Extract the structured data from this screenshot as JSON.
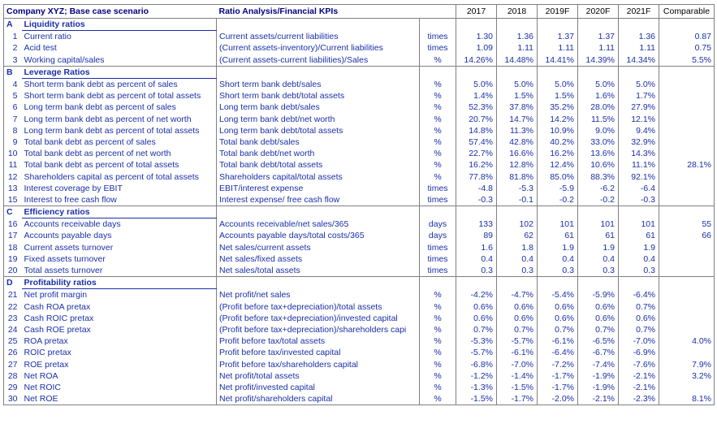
{
  "header": {
    "title": "Company XYZ; Base case scenario",
    "subtitle": "Ratio Analysis/Financial KPIs",
    "years": [
      "2017",
      "2018",
      "2019F",
      "2020F",
      "2021F"
    ],
    "comparable": "Comparable"
  },
  "sections": [
    {
      "letter": "A",
      "title": "Liquidity ratios",
      "rows": [
        {
          "n": "1",
          "name": "Current ratio",
          "formula": "Current assets/current liabilities",
          "unit": "times",
          "values": [
            "1.30",
            "1.36",
            "1.37",
            "1.37",
            "1.36"
          ],
          "comp": "0.87"
        },
        {
          "n": "2",
          "name": "Acid test",
          "formula": "(Current assets-inventory)/Current liabilities",
          "unit": "times",
          "values": [
            "1.09",
            "1.11",
            "1.11",
            "1.11",
            "1.11"
          ],
          "comp": "0.75"
        },
        {
          "n": "3",
          "name": "Working capital/sales",
          "formula": "(Current assets-current liabilities)/Sales",
          "unit": "%",
          "values": [
            "14.26%",
            "14.48%",
            "14.41%",
            "14.39%",
            "14.34%"
          ],
          "comp": "5.5%"
        }
      ]
    },
    {
      "letter": "B",
      "title": "Leverage Ratios",
      "rows": [
        {
          "n": "4",
          "name": "Short term bank debt as percent of sales",
          "formula": "Short term bank debt/sales",
          "unit": "%",
          "values": [
            "5.0%",
            "5.0%",
            "5.0%",
            "5.0%",
            "5.0%"
          ],
          "comp": ""
        },
        {
          "n": "5",
          "name": "Short term bank debt as percent of total assets",
          "formula": "Short term bank debt/total assets",
          "unit": "%",
          "values": [
            "1.4%",
            "1.5%",
            "1.5%",
            "1.6%",
            "1.7%"
          ],
          "comp": ""
        },
        {
          "n": "6",
          "name": "Long term bank debt as percent of sales",
          "formula": "Long term bank debt/sales",
          "unit": "%",
          "values": [
            "52.3%",
            "37.8%",
            "35.2%",
            "28.0%",
            "27.9%"
          ],
          "comp": ""
        },
        {
          "n": "7",
          "name": "Long term bank debt as percent of net worth",
          "formula": "Long term bank debt/net worth",
          "unit": "%",
          "values": [
            "20.7%",
            "14.7%",
            "14.2%",
            "11.5%",
            "12.1%"
          ],
          "comp": ""
        },
        {
          "n": "8",
          "name": "Long term bank debt as percent of total assets",
          "formula": "Long term bank debt/total assets",
          "unit": "%",
          "values": [
            "14.8%",
            "11.3%",
            "10.9%",
            "9.0%",
            "9.4%"
          ],
          "comp": ""
        },
        {
          "n": "9",
          "name": "Total bank debt as percent of sales",
          "formula": "Total bank debt/sales",
          "unit": "%",
          "values": [
            "57.4%",
            "42.8%",
            "40.2%",
            "33.0%",
            "32.9%"
          ],
          "comp": ""
        },
        {
          "n": "10",
          "name": "Total bank debt as percent of net worth",
          "formula": "Total bank debt/net worth",
          "unit": "%",
          "values": [
            "22.7%",
            "16.6%",
            "16.2%",
            "13.6%",
            "14.3%"
          ],
          "comp": ""
        },
        {
          "n": "11",
          "name": "Total bank debt as percent of total assets",
          "formula": "Total bank debt/total assets",
          "unit": "%",
          "values": [
            "16.2%",
            "12.8%",
            "12.4%",
            "10.6%",
            "11.1%"
          ],
          "comp": "28.1%"
        },
        {
          "n": "12",
          "name": "Shareholders capital as percent of total assets",
          "formula": "Shareholders capital/total assets",
          "unit": "%",
          "values": [
            "77.8%",
            "81.8%",
            "85.0%",
            "88.3%",
            "92.1%"
          ],
          "comp": ""
        },
        {
          "n": "13",
          "name": "Interest coverage by EBIT",
          "formula": "EBIT/interest expense",
          "unit": "times",
          "values": [
            "-4.8",
            "-5.3",
            "-5.9",
            "-6.2",
            "-6.4"
          ],
          "comp": ""
        },
        {
          "n": "15",
          "name": "Interest to free cash flow",
          "formula": "Interest expense/ free cash flow",
          "unit": "times",
          "values": [
            "-0.3",
            "-0.1",
            "-0.2",
            "-0.2",
            "-0.3"
          ],
          "comp": ""
        }
      ]
    },
    {
      "letter": "C",
      "title": "Efficiency ratios",
      "rows": [
        {
          "n": "16",
          "name": "Accounts receivable days",
          "formula": "Accounts receivable/net sales/365",
          "unit": "days",
          "values": [
            "133",
            "102",
            "101",
            "101",
            "101"
          ],
          "comp": "55"
        },
        {
          "n": "17",
          "name": "Accounts payable days",
          "formula": "Accounts payable days/total costs/365",
          "unit": "days",
          "values": [
            "89",
            "62",
            "61",
            "61",
            "61"
          ],
          "comp": "66"
        },
        {
          "n": "18",
          "name": "Current assets turnover",
          "formula": "Net sales/current assets",
          "unit": "times",
          "values": [
            "1.6",
            "1.8",
            "1.9",
            "1.9",
            "1.9"
          ],
          "comp": ""
        },
        {
          "n": "19",
          "name": "Fixed assets turnover",
          "formula": "Net sales/fixed assets",
          "unit": "times",
          "values": [
            "0.4",
            "0.4",
            "0.4",
            "0.4",
            "0.4"
          ],
          "comp": ""
        },
        {
          "n": "20",
          "name": "Total assets turnover",
          "formula": "Net sales/total assets",
          "unit": "times",
          "values": [
            "0.3",
            "0.3",
            "0.3",
            "0.3",
            "0.3"
          ],
          "comp": ""
        }
      ]
    },
    {
      "letter": "D",
      "title": "Profitability ratios",
      "rows": [
        {
          "n": "21",
          "name": "Net profit margin",
          "formula": "Net profit/net sales",
          "unit": "%",
          "values": [
            "-4.2%",
            "-4.7%",
            "-5.4%",
            "-5.9%",
            "-6.4%"
          ],
          "comp": ""
        },
        {
          "n": "22",
          "name": "Cash ROA pretax",
          "formula": "(Profit before tax+depreciation)/total assets",
          "unit": "%",
          "values": [
            "0.6%",
            "0.6%",
            "0.6%",
            "0.6%",
            "0.7%"
          ],
          "comp": ""
        },
        {
          "n": "23",
          "name": "Cash ROIC pretax",
          "formula": "(Profit before tax+depreciation)/invested capital",
          "unit": "%",
          "values": [
            "0.6%",
            "0.6%",
            "0.6%",
            "0.6%",
            "0.6%"
          ],
          "comp": ""
        },
        {
          "n": "24",
          "name": "Cash ROE pretax",
          "formula": "(Profit before tax+depreciation)/shareholders capi",
          "unit": "%",
          "values": [
            "0.7%",
            "0.7%",
            "0.7%",
            "0.7%",
            "0.7%"
          ],
          "comp": ""
        },
        {
          "n": "25",
          "name": "ROA pretax",
          "formula": "Profit before tax/total assets",
          "unit": "%",
          "values": [
            "-5.3%",
            "-5.7%",
            "-6.1%",
            "-6.5%",
            "-7.0%"
          ],
          "comp": "4.0%"
        },
        {
          "n": "26",
          "name": "ROIC pretax",
          "formula": "Profit before tax/invested capital",
          "unit": "%",
          "values": [
            "-5.7%",
            "-6.1%",
            "-6.4%",
            "-6.7%",
            "-6.9%"
          ],
          "comp": ""
        },
        {
          "n": "27",
          "name": "ROE pretax",
          "formula": "Profit before tax/shareholders capital",
          "unit": "%",
          "values": [
            "-6.8%",
            "-7.0%",
            "-7.2%",
            "-7.4%",
            "-7.6%"
          ],
          "comp": "7.9%"
        },
        {
          "n": "28",
          "name": "Net ROA",
          "formula": "Net profit/total assets",
          "unit": "%",
          "values": [
            "-1.2%",
            "-1.4%",
            "-1.7%",
            "-1.9%",
            "-2.1%"
          ],
          "comp": "3.2%"
        },
        {
          "n": "29",
          "name": "Net ROIC",
          "formula": "Net profit/invested capital",
          "unit": "%",
          "values": [
            "-1.3%",
            "-1.5%",
            "-1.7%",
            "-1.9%",
            "-2.1%"
          ],
          "comp": ""
        },
        {
          "n": "30",
          "name": "Net ROE",
          "formula": "Net profit/shareholders capital",
          "unit": "%",
          "values": [
            "-1.5%",
            "-1.7%",
            "-2.0%",
            "-2.1%",
            "-2.3%"
          ],
          "comp": "8.1%"
        }
      ]
    }
  ]
}
